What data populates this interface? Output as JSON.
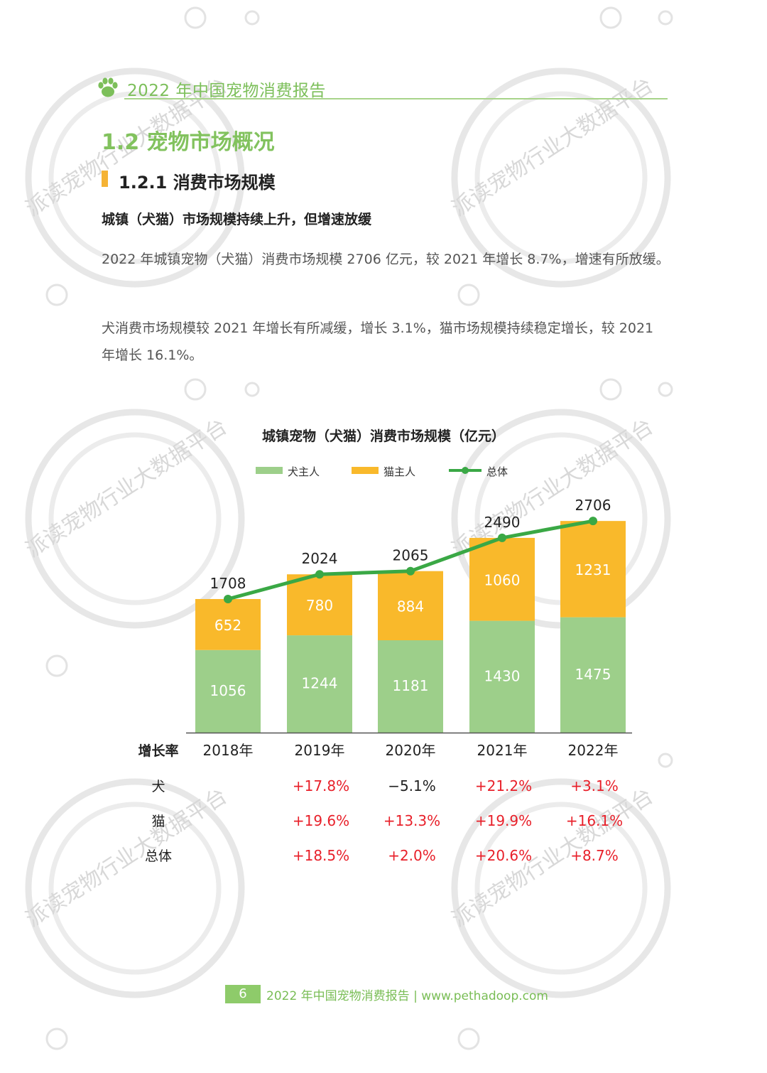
{
  "header": {
    "title": "2022 年中国宠物消费报告",
    "icon": "paw-icon",
    "color": "#7cbf5a"
  },
  "section": {
    "title": "1.2 宠物市场概况"
  },
  "subsection": {
    "title": "1.2.1 消费市场规模"
  },
  "lead": "城镇（犬猫）市场规模持续上升，但增速放缓",
  "paragraphs": [
    "2022 年城镇宠物（犬猫）消费市场规模 2706 亿元，较 2021 年增长 8.7%，增速有所放缓。",
    "犬消费市场规模较 2021 年增长有所减缓，增长 3.1%，猫市场规模持续稳定增长，较 2021 年增长 16.1%。"
  ],
  "watermark": "派读宠物行业大数据平台",
  "chart_data": {
    "type": "bar",
    "stacked": true,
    "title": "城镇宠物（犬猫）消费市场规模（亿元）",
    "categories": [
      "2018年",
      "2019年",
      "2020年",
      "2021年",
      "2022年"
    ],
    "series": [
      {
        "name": "犬主人",
        "kind": "bar",
        "color": "#9dcf8a",
        "values": [
          1056,
          1244,
          1181,
          1430,
          1475
        ]
      },
      {
        "name": "猫主人",
        "kind": "bar",
        "color": "#f9b92b",
        "values": [
          652,
          780,
          884,
          1060,
          1231
        ]
      },
      {
        "name": "总体",
        "kind": "line",
        "color": "#3aa845",
        "values": [
          1708,
          2024,
          2065,
          2490,
          2706
        ]
      }
    ],
    "ylim": [
      0,
      2900
    ],
    "legend": "top-center",
    "grid": false
  },
  "growth_table": {
    "header": "增长率",
    "rows": [
      {
        "label": "犬",
        "values": [
          "",
          "+17.8%",
          "−5.1%",
          "+21.2%",
          "+3.1%"
        ]
      },
      {
        "label": "猫",
        "values": [
          "",
          "+19.6%",
          "+13.3%",
          "+19.9%",
          "+16.1%"
        ]
      },
      {
        "label": "总体",
        "values": [
          "",
          "+18.5%",
          "+2.0%",
          "+20.6%",
          "+8.7%"
        ]
      }
    ],
    "positive_color": "#e8202a",
    "negative_color": "#222222"
  },
  "footer": {
    "page": "6",
    "text": "2022 年中国宠物消费报告 | www.pethadoop.com"
  }
}
